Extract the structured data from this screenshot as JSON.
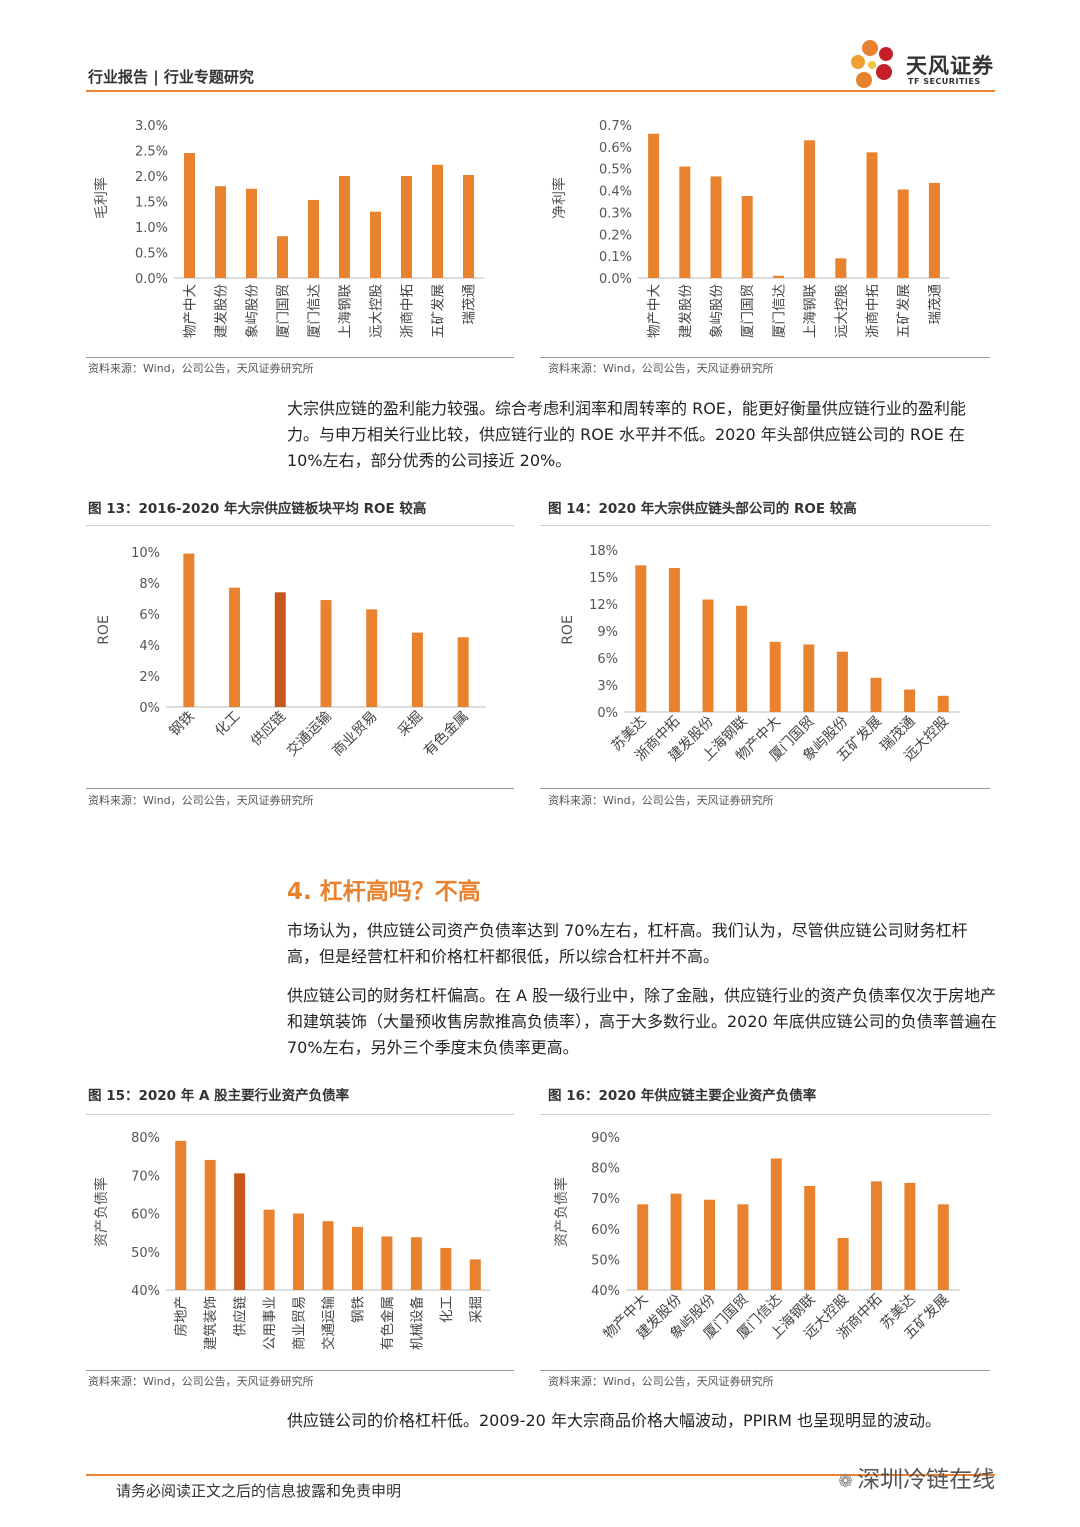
{
  "header": {
    "title": "行业报告 | 行业专题研究",
    "logo_cn": "天风证券",
    "logo_en": "TF SECURITIES"
  },
  "colors": {
    "accent": "#e8822f",
    "highlight": "#c5581a",
    "text": "#333333"
  },
  "paragraphs": {
    "p1": "大宗供应链的盈利能力较强。综合考虑利润率和周转率的 ROE，能更好衡量供应链行业的盈利能力。与申万相关行业比较，供应链行业的 ROE 水平并不低。2020 年头部供应链公司的 ROE 在 10%左右，部分优秀的公司接近 20%。",
    "section_title": "4. 杠杆高吗？不高",
    "p2": "市场认为，供应链公司资产负债率达到 70%左右，杠杆高。我们认为，尽管供应链公司财务杠杆高，但是经营杠杆和价格杠杆都很低，所以综合杠杆并不高。",
    "p3": "供应链公司的财务杠杆偏高。在 A 股一级行业中，除了金融，供应链行业的资产负债率仅次于房地产和建筑装饰（大量预收售房款推高负债率），高于大多数行业。2020 年底供应链公司的负债率普遍在 70%左右，另外三个季度末负债率更高。",
    "p4": "供应链公司的价格杠杆低。2009-20 年大宗商品价格大幅波动，PPIRM 也呈现明显的波动。"
  },
  "sources": {
    "s1": "资料来源：Wind，公司公告，天风证券研究所",
    "s2": "资料来源：Wind，公司公告，天风证券研究所",
    "s3": "资料来源：Wind，公司公告，天风证券研究所",
    "s4": "资料来源：Wind，公司公告，天风证券研究所",
    "s5": "资料来源：Wind，公司公告，天风证券研究所",
    "s6": "资料来源：Wind，公司公告，天风证券研究所"
  },
  "footer": {
    "disclaimer": "请务必阅读正文之后的信息披露和免责申明",
    "watermark": "深圳冷链在线"
  },
  "chart_data": [
    {
      "id": "gross",
      "type": "bar",
      "title": "",
      "ylabel": "毛利率",
      "categories": [
        "物产中大",
        "建发股份",
        "象屿股份",
        "厦门国贸",
        "厦门信达",
        "上海钢联",
        "远大控股",
        "浙商中拓",
        "五矿发展",
        "瑞茂通"
      ],
      "values": [
        2.45,
        1.8,
        1.75,
        0.82,
        1.53,
        2.0,
        1.3,
        2.0,
        2.22,
        2.02
      ],
      "ylim": [
        0,
        3.0
      ],
      "yticks": [
        "0.0%",
        "0.5%",
        "1.0%",
        "1.5%",
        "2.0%",
        "2.5%",
        "3.0%"
      ],
      "label_rotation": "vertical",
      "highlight_index": -1
    },
    {
      "id": "net",
      "type": "bar",
      "title": "",
      "ylabel": "净利率",
      "categories": [
        "物产中大",
        "建发股份",
        "象屿股份",
        "厦门国贸",
        "厦门信达",
        "上海钢联",
        "远大控股",
        "浙商中拓",
        "五矿发展",
        "瑞茂通"
      ],
      "values": [
        0.66,
        0.51,
        0.465,
        0.375,
        0.01,
        0.63,
        0.09,
        0.575,
        0.405,
        0.435
      ],
      "ylim": [
        0,
        0.7
      ],
      "yticks": [
        "0.0%",
        "0.1%",
        "0.2%",
        "0.3%",
        "0.4%",
        "0.5%",
        "0.6%",
        "0.7%"
      ],
      "label_rotation": "vertical",
      "highlight_index": -1
    },
    {
      "id": "fig13",
      "type": "bar",
      "title": "图 13：2016-2020 年大宗供应链板块平均 ROE 较高",
      "ylabel": "ROE",
      "categories": [
        "钢铁",
        "化工",
        "供应链",
        "交通运输",
        "商业贸易",
        "采掘",
        "有色金属"
      ],
      "values": [
        9.9,
        7.7,
        7.4,
        6.9,
        6.3,
        4.8,
        4.5
      ],
      "ylim": [
        0,
        10
      ],
      "yticks": [
        "0%",
        "2%",
        "4%",
        "6%",
        "8%",
        "10%"
      ],
      "label_rotation": "diagonal",
      "highlight_index": 2
    },
    {
      "id": "fig14",
      "type": "bar",
      "title": "图 14：2020 年大宗供应链头部公司的 ROE 较高",
      "ylabel": "ROE",
      "categories": [
        "苏美达",
        "浙商中拓",
        "建发股份",
        "上海钢联",
        "物产中大",
        "厦门国贸",
        "象屿股份",
        "五矿发展",
        "瑞茂通",
        "远大控股"
      ],
      "values": [
        16.3,
        16.0,
        12.5,
        11.8,
        7.8,
        7.5,
        6.7,
        3.8,
        2.5,
        1.8
      ],
      "ylim": [
        0,
        18
      ],
      "yticks": [
        "0%",
        "3%",
        "6%",
        "9%",
        "12%",
        "15%",
        "18%"
      ],
      "label_rotation": "diagonal",
      "highlight_index": -1
    },
    {
      "id": "fig15",
      "type": "bar",
      "title": "图 15：2020 年 A 股主要行业资产负债率",
      "ylabel": "资产负债率",
      "categories": [
        "房地产",
        "建筑装饰",
        "供应链",
        "公用事业",
        "商业贸易",
        "交通运输",
        "钢铁",
        "有色金属",
        "机械设备",
        "化工",
        "采掘"
      ],
      "values": [
        79,
        74,
        70.5,
        61,
        60,
        58,
        56.5,
        54,
        53.8,
        51,
        48
      ],
      "ylim": [
        40,
        80
      ],
      "yticks": [
        "40%",
        "50%",
        "60%",
        "70%",
        "80%"
      ],
      "label_rotation": "vertical",
      "highlight_index": 2
    },
    {
      "id": "fig16",
      "type": "bar",
      "title": "图 16：2020 年供应链主要企业资产负债率",
      "ylabel": "资产负债率",
      "categories": [
        "物产中大",
        "建发股份",
        "象屿股份",
        "厦门国贸",
        "厦门信达",
        "上海钢联",
        "远大控股",
        "浙商中拓",
        "苏美达",
        "五矿发展"
      ],
      "values": [
        68,
        71.5,
        69.5,
        68,
        83,
        74,
        57,
        75.5,
        75,
        68
      ],
      "ylim": [
        40,
        90
      ],
      "yticks": [
        "40%",
        "50%",
        "60%",
        "70%",
        "80%",
        "90%"
      ],
      "label_rotation": "diagonal",
      "highlight_index": -1
    }
  ]
}
